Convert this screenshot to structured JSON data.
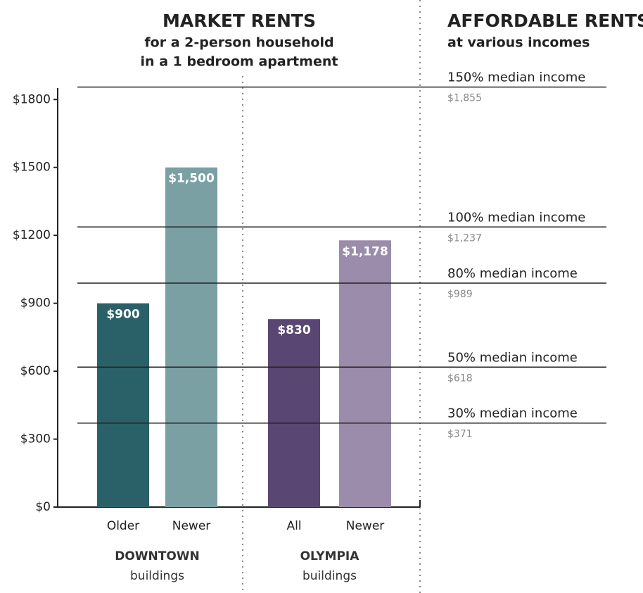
{
  "chart_data": {
    "type": "bar",
    "title": "MARKET RENTS",
    "subtitle": [
      "for a 2-person household",
      "in a 1 bedroom apartment"
    ],
    "categories": [
      "Older",
      "Newer",
      "All",
      "Newer"
    ],
    "values": [
      900,
      1500,
      830,
      1178
    ],
    "value_labels": [
      "$900",
      "$1,500",
      "$830",
      "$1,178"
    ],
    "colors": [
      "#2a6168",
      "#7aa0a4",
      "#5a4672",
      "#9a8caa"
    ],
    "groups": [
      {
        "name": "DOWNTOWN",
        "sub": "buildings"
      },
      {
        "name": "OLYMPIA",
        "sub": "buildings"
      }
    ],
    "ylim": [
      0,
      1860
    ],
    "yticks": [
      {
        "value": 0,
        "label": "$0"
      },
      {
        "value": 300,
        "label": "$300"
      },
      {
        "value": 600,
        "label": "$600"
      },
      {
        "value": 900,
        "label": "$900"
      },
      {
        "value": 1200,
        "label": "$1200"
      },
      {
        "value": 1500,
        "label": "$1500"
      },
      {
        "value": 1800,
        "label": "$1800"
      }
    ],
    "reference_title": "AFFORDABLE RENTS",
    "reference_subtitle": "at various incomes",
    "reference_lines": [
      {
        "label": "150% median income",
        "value": 1855,
        "value_label": "$1,855"
      },
      {
        "label": "100% median income",
        "value": 1237,
        "value_label": "$1,237"
      },
      {
        "label": "80% median income",
        "value": 989,
        "value_label": "$989"
      },
      {
        "label": "50% median income",
        "value": 618,
        "value_label": "$618"
      },
      {
        "label": "30% median income",
        "value": 371,
        "value_label": "$371"
      }
    ]
  }
}
